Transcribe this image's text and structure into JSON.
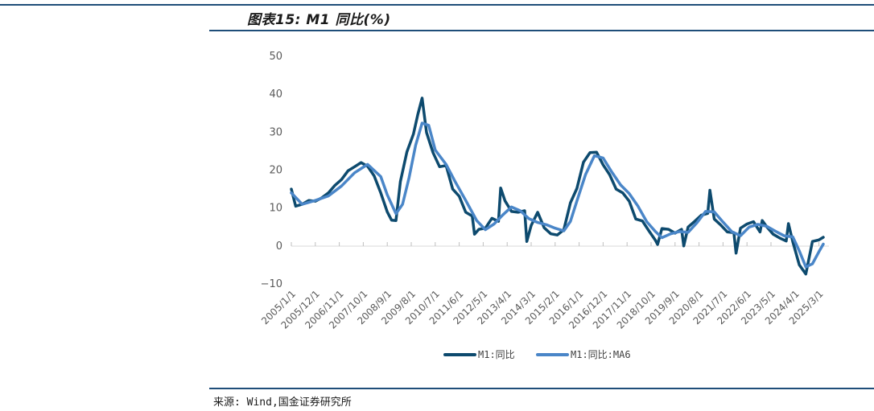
{
  "header": {
    "title": "图表15: M1 同比(%)"
  },
  "footer": {
    "source": "来源: Wind,国金证券研究所"
  },
  "chart_data": {
    "type": "line",
    "ylim": [
      -10,
      50
    ],
    "yticks": [
      "50",
      "40",
      "30",
      "20",
      "10",
      "0",
      "−10"
    ],
    "x_start": "2005/1",
    "x_end": "2025/5",
    "tick_labels": [
      "2005/1/1",
      "2005/12/1",
      "2006/11/1",
      "2007/10/1",
      "2008/9/1",
      "2009/8/1",
      "2010/7/1",
      "2011/6/1",
      "2012/5/1",
      "2013/4/1",
      "2014/3/1",
      "2015/2/1",
      "2016/1/1",
      "2016/12/1",
      "2017/11/1",
      "2018/10/1",
      "2019/9/1",
      "2020/8/1",
      "2021/7/1",
      "2022/6/1",
      "2023/5/1",
      "2024/4/1",
      "2025/3/1"
    ],
    "legend_position": "bottom",
    "series": [
      {
        "name": "M1:同比",
        "color": "#0d4a6e",
        "points": [
          [
            "2005/1",
            15
          ],
          [
            "2005/3",
            10.5
          ],
          [
            "2005/6",
            11
          ],
          [
            "2005/9",
            12
          ],
          [
            "2005/12",
            11.8
          ],
          [
            "2006/3",
            12.7
          ],
          [
            "2006/6",
            14
          ],
          [
            "2006/9",
            16
          ],
          [
            "2006/12",
            17.5
          ],
          [
            "2007/3",
            19.8
          ],
          [
            "2007/6",
            20.9
          ],
          [
            "2007/9",
            22
          ],
          [
            "2007/12",
            21
          ],
          [
            "2008/3",
            18.5
          ],
          [
            "2008/6",
            14
          ],
          [
            "2008/9",
            9
          ],
          [
            "2008/11",
            6.8
          ],
          [
            "2009/1",
            6.7
          ],
          [
            "2009/3",
            17
          ],
          [
            "2009/6",
            24.8
          ],
          [
            "2009/9",
            29.5
          ],
          [
            "2009/11",
            34.6
          ],
          [
            "2010/1",
            39
          ],
          [
            "2010/3",
            29.9
          ],
          [
            "2010/6",
            24.6
          ],
          [
            "2010/9",
            20.9
          ],
          [
            "2010/12",
            21.2
          ],
          [
            "2011/3",
            15
          ],
          [
            "2011/6",
            13.1
          ],
          [
            "2011/9",
            8.9
          ],
          [
            "2011/12",
            7.9
          ],
          [
            "2012/1",
            3.1
          ],
          [
            "2012/3",
            4.4
          ],
          [
            "2012/6",
            4.7
          ],
          [
            "2012/9",
            7.3
          ],
          [
            "2012/12",
            6.5
          ],
          [
            "2013/1",
            15.3
          ],
          [
            "2013/3",
            11.9
          ],
          [
            "2013/6",
            9.1
          ],
          [
            "2013/9",
            8.9
          ],
          [
            "2013/12",
            9.3
          ],
          [
            "2014/1",
            1.2
          ],
          [
            "2014/3",
            5.4
          ],
          [
            "2014/6",
            8.9
          ],
          [
            "2014/9",
            4.8
          ],
          [
            "2014/12",
            3.2
          ],
          [
            "2015/3",
            2.9
          ],
          [
            "2015/6",
            4.3
          ],
          [
            "2015/9",
            11.4
          ],
          [
            "2015/12",
            15.2
          ],
          [
            "2016/3",
            22.1
          ],
          [
            "2016/6",
            24.6
          ],
          [
            "2016/9",
            24.7
          ],
          [
            "2016/12",
            21.4
          ],
          [
            "2017/3",
            18.8
          ],
          [
            "2017/6",
            15
          ],
          [
            "2017/9",
            14
          ],
          [
            "2017/12",
            11.8
          ],
          [
            "2018/3",
            7.1
          ],
          [
            "2018/6",
            6.6
          ],
          [
            "2018/9",
            4
          ],
          [
            "2018/12",
            1.5
          ],
          [
            "2019/1",
            0.4
          ],
          [
            "2019/3",
            4.6
          ],
          [
            "2019/6",
            4.4
          ],
          [
            "2019/9",
            3.4
          ],
          [
            "2019/12",
            4.4
          ],
          [
            "2020/1",
            0
          ],
          [
            "2020/3",
            5
          ],
          [
            "2020/6",
            6.5
          ],
          [
            "2020/9",
            8.1
          ],
          [
            "2020/12",
            8.6
          ],
          [
            "2021/1",
            14.7
          ],
          [
            "2021/3",
            7.1
          ],
          [
            "2021/6",
            5.5
          ],
          [
            "2021/9",
            3.7
          ],
          [
            "2021/12",
            3.5
          ],
          [
            "2022/1",
            -1.9
          ],
          [
            "2022/3",
            4.7
          ],
          [
            "2022/6",
            5.8
          ],
          [
            "2022/9",
            6.4
          ],
          [
            "2022/12",
            3.7
          ],
          [
            "2023/1",
            6.7
          ],
          [
            "2023/3",
            5.1
          ],
          [
            "2023/6",
            3.1
          ],
          [
            "2023/9",
            2.1
          ],
          [
            "2023/12",
            1.3
          ],
          [
            "2024/1",
            5.9
          ],
          [
            "2024/3",
            1.1
          ],
          [
            "2024/6",
            -5
          ],
          [
            "2024/9",
            -7.4
          ],
          [
            "2024/12",
            1.2
          ],
          [
            "2025/3",
            1.6
          ],
          [
            "2025/5",
            2.3
          ]
        ]
      },
      {
        "name": "M1:同比:MA6",
        "color": "#4a86c8",
        "points": [
          [
            "2005/1",
            14
          ],
          [
            "2005/6",
            11
          ],
          [
            "2005/12",
            12
          ],
          [
            "2006/6",
            13.2
          ],
          [
            "2006/12",
            15.8
          ],
          [
            "2007/6",
            19.3
          ],
          [
            "2007/12",
            21.5
          ],
          [
            "2008/6",
            18.3
          ],
          [
            "2008/9",
            13.5
          ],
          [
            "2009/1",
            8.5
          ],
          [
            "2009/4",
            11
          ],
          [
            "2009/7",
            18
          ],
          [
            "2009/10",
            26.5
          ],
          [
            "2010/1",
            32.4
          ],
          [
            "2010/4",
            31.8
          ],
          [
            "2010/7",
            25.3
          ],
          [
            "2010/12",
            21.5
          ],
          [
            "2011/4",
            17.1
          ],
          [
            "2011/9",
            12
          ],
          [
            "2012/2",
            6.7
          ],
          [
            "2012/6",
            4.3
          ],
          [
            "2012/10",
            5.8
          ],
          [
            "2013/2",
            8.2
          ],
          [
            "2013/6",
            10.3
          ],
          [
            "2013/10",
            9.3
          ],
          [
            "2014/2",
            7.2
          ],
          [
            "2014/6",
            6.2
          ],
          [
            "2014/10",
            5.6
          ],
          [
            "2015/2",
            4.7
          ],
          [
            "2015/6",
            4
          ],
          [
            "2015/9",
            6.5
          ],
          [
            "2015/12",
            11.9
          ],
          [
            "2016/4",
            18.9
          ],
          [
            "2016/8",
            23.8
          ],
          [
            "2016/12",
            23.2
          ],
          [
            "2017/4",
            19.5
          ],
          [
            "2017/8",
            16.1
          ],
          [
            "2017/12",
            13.8
          ],
          [
            "2018/4",
            10.5
          ],
          [
            "2018/8",
            6.4
          ],
          [
            "2018/12",
            3.8
          ],
          [
            "2019/3",
            2.2
          ],
          [
            "2019/7",
            3.2
          ],
          [
            "2019/11",
            3.8
          ],
          [
            "2020/3",
            3.6
          ],
          [
            "2020/7",
            6.1
          ],
          [
            "2020/11",
            9.1
          ],
          [
            "2021/3",
            9
          ],
          [
            "2021/7",
            6.3
          ],
          [
            "2021/11",
            3.8
          ],
          [
            "2022/3",
            2.7
          ],
          [
            "2022/7",
            5
          ],
          [
            "2022/11",
            5.7
          ],
          [
            "2023/3",
            5.2
          ],
          [
            "2023/7",
            3.9
          ],
          [
            "2023/11",
            2.7
          ],
          [
            "2024/3",
            2.4
          ],
          [
            "2024/6",
            -1.3
          ],
          [
            "2024/9",
            -5.5
          ],
          [
            "2024/12",
            -4.7
          ],
          [
            "2025/3",
            -1.5
          ],
          [
            "2025/5",
            0.5
          ]
        ]
      }
    ]
  }
}
